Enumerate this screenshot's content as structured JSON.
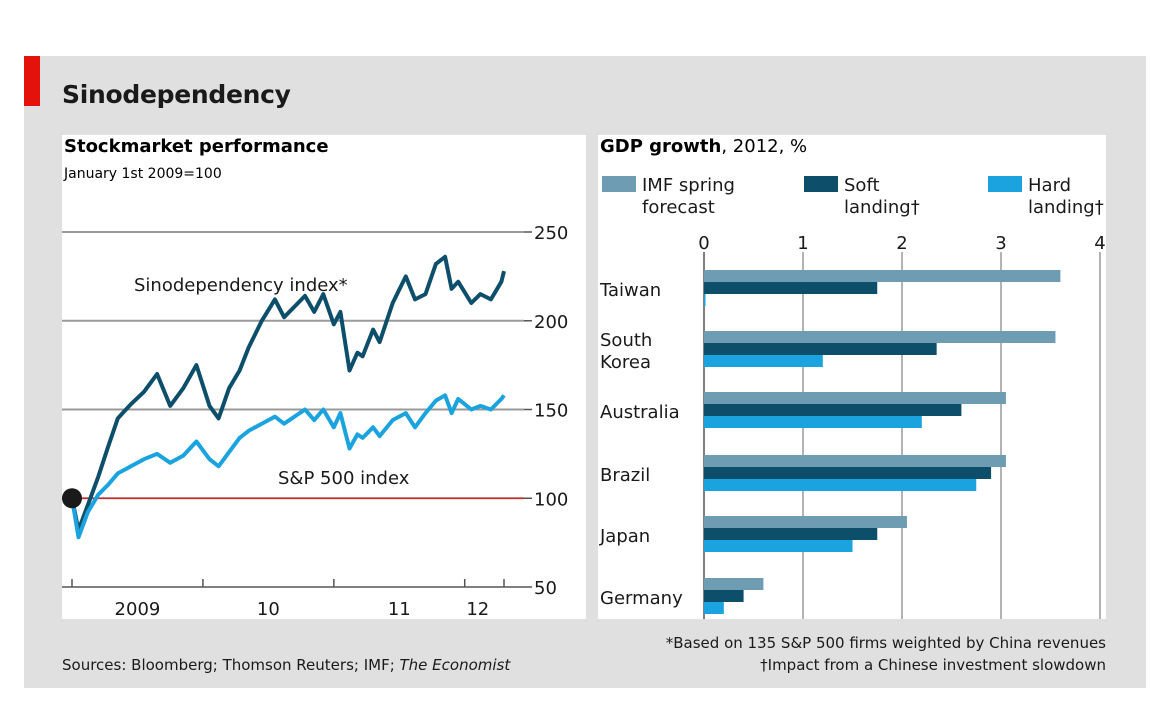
{
  "title": "Sinodependency",
  "colors": {
    "red_tag": "#e3120b",
    "sino": "#0d4f6a",
    "sp500": "#1aa3de",
    "imf": "#6e9db3",
    "soft": "#0d4f6a",
    "hard": "#1aa3de",
    "baseline": "#e3120b"
  },
  "chart_data": [
    {
      "type": "line",
      "title": "Stockmarket performance",
      "subtitle": "January 1st 2009=100",
      "ylim": [
        50,
        250
      ],
      "y_ticks": [
        250,
        200,
        150,
        100,
        50
      ],
      "x_ticks": [
        "2009",
        "10",
        "11",
        "12"
      ],
      "x_range": [
        2009.0,
        2012.3
      ],
      "grid": true,
      "baseline": 100,
      "series": [
        {
          "name": "Sinodependency index*",
          "x": [
            2009.0,
            2009.05,
            2009.12,
            2009.2,
            2009.28,
            2009.35,
            2009.45,
            2009.55,
            2009.65,
            2009.75,
            2009.85,
            2009.95,
            2010.05,
            2010.12,
            2010.2,
            2010.28,
            2010.35,
            2010.45,
            2010.55,
            2010.62,
            2010.7,
            2010.78,
            2010.85,
            2010.92,
            2011.0,
            2011.05,
            2011.12,
            2011.18,
            2011.22,
            2011.3,
            2011.35,
            2011.45,
            2011.55,
            2011.62,
            2011.7,
            2011.78,
            2011.85,
            2011.9,
            2011.95,
            2012.05,
            2012.12,
            2012.2,
            2012.28,
            2012.3
          ],
          "values": [
            100,
            82,
            96,
            112,
            130,
            145,
            153,
            160,
            170,
            152,
            162,
            175,
            152,
            145,
            162,
            172,
            185,
            200,
            212,
            202,
            208,
            214,
            205,
            215,
            198,
            205,
            172,
            182,
            180,
            195,
            188,
            210,
            225,
            212,
            215,
            232,
            236,
            218,
            222,
            210,
            215,
            212,
            222,
            228
          ]
        },
        {
          "name": "S&P 500 index",
          "x": [
            2009.0,
            2009.05,
            2009.12,
            2009.2,
            2009.28,
            2009.35,
            2009.45,
            2009.55,
            2009.65,
            2009.75,
            2009.85,
            2009.95,
            2010.05,
            2010.12,
            2010.2,
            2010.28,
            2010.35,
            2010.45,
            2010.55,
            2010.62,
            2010.7,
            2010.78,
            2010.85,
            2010.92,
            2011.0,
            2011.05,
            2011.12,
            2011.18,
            2011.22,
            2011.3,
            2011.35,
            2011.45,
            2011.55,
            2011.62,
            2011.7,
            2011.78,
            2011.85,
            2011.9,
            2011.95,
            2012.05,
            2012.12,
            2012.2,
            2012.28,
            2012.3
          ],
          "values": [
            100,
            78,
            92,
            102,
            108,
            114,
            118,
            122,
            125,
            120,
            124,
            132,
            122,
            118,
            126,
            134,
            138,
            142,
            146,
            142,
            146,
            150,
            144,
            150,
            140,
            148,
            128,
            136,
            134,
            140,
            135,
            144,
            148,
            140,
            148,
            155,
            158,
            148,
            156,
            150,
            152,
            150,
            156,
            158
          ]
        }
      ],
      "annotations": [
        "Sinodependency index*",
        "S&P 500 index"
      ]
    },
    {
      "type": "bar",
      "orientation": "horizontal",
      "title": "GDP growth",
      "title_suffix": ", 2012, %",
      "xlim": [
        0,
        4
      ],
      "x_ticks": [
        "0",
        "1",
        "2",
        "3",
        "4"
      ],
      "grid": true,
      "categories": [
        "Taiwan",
        "South Korea",
        "Australia",
        "Brazil",
        "Japan",
        "Germany"
      ],
      "category_lines": [
        [
          "Taiwan"
        ],
        [
          "South",
          "Korea"
        ],
        [
          "Australia"
        ],
        [
          "Brazil"
        ],
        [
          "Japan"
        ],
        [
          "Germany"
        ]
      ],
      "series": [
        {
          "name": "IMF spring forecast",
          "values": [
            3.6,
            3.55,
            3.05,
            3.05,
            2.05,
            0.6
          ]
        },
        {
          "name": "Soft landing†",
          "values": [
            1.75,
            2.35,
            2.6,
            2.9,
            1.75,
            0.4
          ]
        },
        {
          "name": "Hard landing†",
          "values": [
            0.0,
            1.2,
            2.2,
            2.75,
            1.5,
            0.2
          ]
        }
      ],
      "legend": [
        {
          "lines": [
            "IMF spring",
            "forecast"
          ]
        },
        {
          "lines": [
            "Soft",
            "landing†"
          ]
        },
        {
          "lines": [
            "Hard",
            "landing†"
          ]
        }
      ]
    }
  ],
  "footnotes": {
    "note1": "*Based on 135 S&P 500 firms weighted by China revenues",
    "note2": "†Impact from a Chinese investment slowdown",
    "sources_prefix": "Sources: Bloomberg; Thomson Reuters; IMF; ",
    "sources_italic": "The Economist"
  }
}
